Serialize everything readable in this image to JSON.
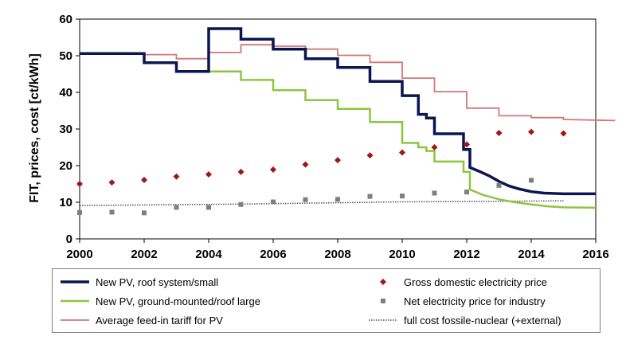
{
  "chart_data": {
    "type": "line",
    "title": "",
    "xlabel": "",
    "ylabel": "FIT, prices, cost [ct/kWh]",
    "xlim": [
      2000,
      2016
    ],
    "ylim": [
      0,
      60
    ],
    "xticks": [
      "2000",
      "2002",
      "2004",
      "2006",
      "2008",
      "2010",
      "2012",
      "2014",
      "2016"
    ],
    "yticks": [
      "0",
      "10",
      "20",
      "30",
      "40",
      "50",
      "60"
    ],
    "grid": false,
    "legend_position": "bottom",
    "series": [
      {
        "name": "New PV, roof system/small",
        "kind": "step",
        "color": "#0b1650",
        "points": [
          [
            2000,
            50.6
          ],
          [
            2002,
            50.6
          ],
          [
            2002,
            48.1
          ],
          [
            2003,
            48.1
          ],
          [
            2003,
            45.7
          ],
          [
            2004,
            45.7
          ],
          [
            2004,
            57.4
          ],
          [
            2005,
            57.4
          ],
          [
            2005,
            54.5
          ],
          [
            2006,
            54.5
          ],
          [
            2006,
            51.8
          ],
          [
            2007,
            51.8
          ],
          [
            2007,
            49.2
          ],
          [
            2008,
            49.2
          ],
          [
            2008,
            46.8
          ],
          [
            2009,
            46.8
          ],
          [
            2009,
            43.0
          ],
          [
            2010,
            43.0
          ],
          [
            2010,
            39.1
          ],
          [
            2010.5,
            39.1
          ],
          [
            2010.5,
            34.0
          ],
          [
            2010.75,
            34.0
          ],
          [
            2010.75,
            33.0
          ],
          [
            2011,
            33.0
          ],
          [
            2011,
            28.7
          ],
          [
            2011.9,
            28.7
          ],
          [
            2011.9,
            24.4
          ],
          [
            2012.1,
            24.4
          ],
          [
            2012.1,
            19.5
          ],
          [
            2012.4,
            18.4
          ],
          [
            2012.7,
            17.2
          ],
          [
            2013,
            15.7
          ],
          [
            2013.3,
            14.5
          ],
          [
            2013.6,
            13.7
          ],
          [
            2014,
            12.9
          ],
          [
            2014.4,
            12.5
          ],
          [
            2015,
            12.3
          ],
          [
            2016,
            12.3
          ]
        ]
      },
      {
        "name": "New PV, ground-mounted/roof large",
        "kind": "step",
        "color": "#8cc63f",
        "points": [
          [
            2004,
            45.7
          ],
          [
            2005,
            45.7
          ],
          [
            2005,
            43.4
          ],
          [
            2006,
            43.4
          ],
          [
            2006,
            40.6
          ],
          [
            2007,
            40.6
          ],
          [
            2007,
            37.9
          ],
          [
            2008,
            37.9
          ],
          [
            2008,
            35.5
          ],
          [
            2009,
            35.5
          ],
          [
            2009,
            31.9
          ],
          [
            2010,
            31.9
          ],
          [
            2010,
            26.2
          ],
          [
            2010.5,
            26.2
          ],
          [
            2010.5,
            25.0
          ],
          [
            2010.75,
            25.0
          ],
          [
            2010.75,
            24.0
          ],
          [
            2011,
            24.0
          ],
          [
            2011,
            21.1
          ],
          [
            2011.9,
            21.1
          ],
          [
            2011.9,
            18.3
          ],
          [
            2012.1,
            18.3
          ],
          [
            2012.1,
            13.5
          ],
          [
            2012.5,
            12.0
          ],
          [
            2013,
            10.8
          ],
          [
            2013.5,
            10.0
          ],
          [
            2014,
            9.4
          ],
          [
            2014.5,
            8.9
          ],
          [
            2015,
            8.6
          ],
          [
            2016,
            8.5
          ]
        ]
      },
      {
        "name": "Average feed-in tariff for PV",
        "kind": "step",
        "color": "#d07878",
        "points": [
          [
            2000,
            50.6
          ],
          [
            2002,
            50.6
          ],
          [
            2002,
            50.3
          ],
          [
            2003,
            50.3
          ],
          [
            2003,
            49.2
          ],
          [
            2004,
            49.2
          ],
          [
            2004,
            50.9
          ],
          [
            2005,
            50.9
          ],
          [
            2005,
            53.0
          ],
          [
            2006,
            53.0
          ],
          [
            2006,
            52.6
          ],
          [
            2007,
            52.6
          ],
          [
            2007,
            51.8
          ],
          [
            2008,
            51.8
          ],
          [
            2008,
            50.1
          ],
          [
            2009,
            50.1
          ],
          [
            2009,
            48.2
          ],
          [
            2010,
            48.2
          ],
          [
            2010,
            43.9
          ],
          [
            2011,
            43.9
          ],
          [
            2011,
            40.2
          ],
          [
            2012,
            40.2
          ],
          [
            2012,
            35.7
          ],
          [
            2013,
            35.7
          ],
          [
            2013,
            33.6
          ],
          [
            2014,
            33.6
          ],
          [
            2014,
            33.1
          ],
          [
            2015,
            33.1
          ],
          [
            2015,
            32.6
          ],
          [
            2016.6,
            32.3
          ]
        ]
      },
      {
        "name": "Gross domestic electricity price",
        "kind": "scatter",
        "marker": "diamond",
        "color": "#a2161a",
        "points": [
          [
            2000,
            15.0
          ],
          [
            2001,
            15.4
          ],
          [
            2002,
            16.1
          ],
          [
            2003,
            17.0
          ],
          [
            2004,
            17.6
          ],
          [
            2005,
            18.3
          ],
          [
            2006,
            18.9
          ],
          [
            2007,
            20.3
          ],
          [
            2008,
            21.5
          ],
          [
            2009,
            22.8
          ],
          [
            2010,
            23.6
          ],
          [
            2011,
            25.0
          ],
          [
            2012,
            25.8
          ],
          [
            2013,
            28.9
          ],
          [
            2014,
            29.2
          ],
          [
            2015,
            28.8
          ]
        ]
      },
      {
        "name": "Net electricity price for industry",
        "kind": "scatter",
        "marker": "square",
        "color": "#7f7f7f",
        "points": [
          [
            2000,
            7.2
          ],
          [
            2001,
            7.3
          ],
          [
            2002,
            7.1
          ],
          [
            2003,
            8.6
          ],
          [
            2004,
            8.6
          ],
          [
            2005,
            9.4
          ],
          [
            2006,
            10.1
          ],
          [
            2007,
            10.7
          ],
          [
            2008,
            10.8
          ],
          [
            2009,
            11.6
          ],
          [
            2010,
            11.7
          ],
          [
            2011,
            12.5
          ],
          [
            2012,
            12.8
          ],
          [
            2013,
            14.6
          ],
          [
            2014,
            16.0
          ]
        ]
      },
      {
        "name": "full cost fossile-nuclear (+external)",
        "kind": "dotted",
        "color": "#555555",
        "points": [
          [
            2000,
            9.1
          ],
          [
            2005,
            9.5
          ],
          [
            2010,
            10.1
          ],
          [
            2012,
            10.2
          ],
          [
            2015,
            10.4
          ]
        ]
      }
    ]
  }
}
